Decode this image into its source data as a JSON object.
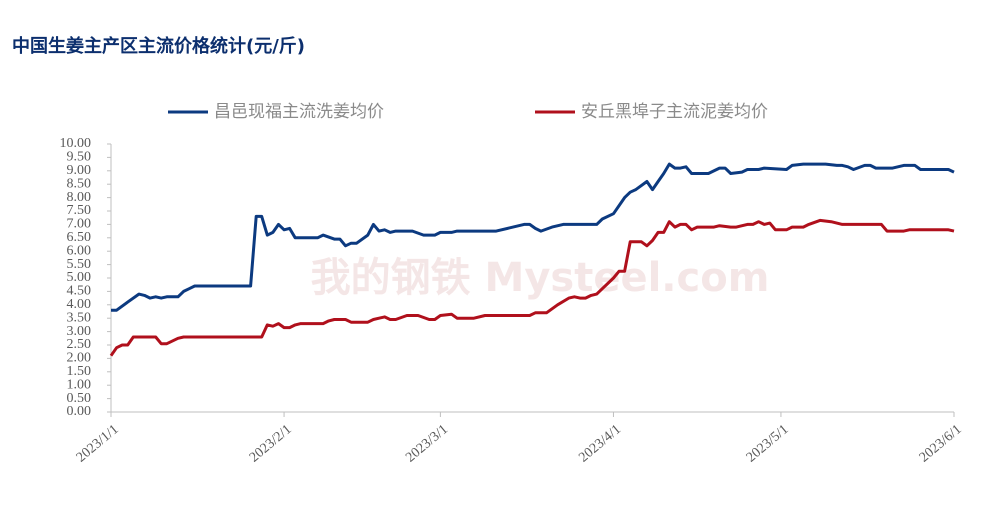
{
  "chart_data": {
    "type": "line",
    "title": "中国生姜主产区主流价格统计(元/斤)",
    "watermark": "我的钢铁 Mysteel.com",
    "ylim": [
      0,
      10
    ],
    "yticks": [
      {
        "value": 0,
        "label": "0.00"
      },
      {
        "value": 0.5,
        "label": "0.50"
      },
      {
        "value": 1,
        "label": "1.00"
      },
      {
        "value": 1.5,
        "label": "1.50"
      },
      {
        "value": 2,
        "label": "2.00"
      },
      {
        "value": 2.5,
        "label": "2.50"
      },
      {
        "value": 3,
        "label": "3.00"
      },
      {
        "value": 3.5,
        "label": "3.50"
      },
      {
        "value": 4,
        "label": "4.00"
      },
      {
        "value": 4.5,
        "label": "4.50"
      },
      {
        "value": 5,
        "label": "5.00"
      },
      {
        "value": 5.5,
        "label": "5.50"
      },
      {
        "value": 6,
        "label": "6.00"
      },
      {
        "value": 6.5,
        "label": "6.50"
      },
      {
        "value": 7,
        "label": "7.00"
      },
      {
        "value": 7.5,
        "label": "7.50"
      },
      {
        "value": 8,
        "label": "8.00"
      },
      {
        "value": 8.5,
        "label": "8.50"
      },
      {
        "value": 9,
        "label": "9.00"
      },
      {
        "value": 9.5,
        "label": "9.50"
      },
      {
        "value": 10,
        "label": "10.00"
      }
    ],
    "xlim": [
      "2023/1/1",
      "2023/6/1"
    ],
    "xticks": [
      "2023/1/1",
      "2023/2/1",
      "2023/3/1",
      "2023/4/1",
      "2023/5/1",
      "2023/6/1"
    ],
    "legend": "top",
    "series": [
      {
        "name": "昌邑现福主流洗姜均价",
        "color": "#0c3a80",
        "x": [
          "2023/1/1",
          "2023/1/2",
          "2023/1/4",
          "2023/1/6",
          "2023/1/7",
          "2023/1/8",
          "2023/1/9",
          "2023/1/10",
          "2023/1/11",
          "2023/1/13",
          "2023/1/14",
          "2023/1/15",
          "2023/1/16",
          "2023/1/26",
          "2023/1/27",
          "2023/1/28",
          "2023/1/29",
          "2023/1/30",
          "2023/1/31",
          "2023/2/1",
          "2023/2/2",
          "2023/2/3",
          "2023/2/7",
          "2023/2/8",
          "2023/2/10",
          "2023/2/11",
          "2023/2/12",
          "2023/2/13",
          "2023/2/14",
          "2023/2/16",
          "2023/2/17",
          "2023/2/18",
          "2023/2/19",
          "2023/2/20",
          "2023/2/21",
          "2023/2/24",
          "2023/2/26",
          "2023/2/28",
          "2023/3/1",
          "2023/3/3",
          "2023/3/4",
          "2023/3/11",
          "2023/3/16",
          "2023/3/17",
          "2023/3/18",
          "2023/3/19",
          "2023/3/21",
          "2023/3/23",
          "2023/3/29",
          "2023/3/30",
          "2023/4/1",
          "2023/4/3",
          "2023/4/4",
          "2023/4/5",
          "2023/4/7",
          "2023/4/8",
          "2023/4/9",
          "2023/4/10",
          "2023/4/11",
          "2023/4/12",
          "2023/4/13",
          "2023/4/14",
          "2023/4/15",
          "2023/4/18",
          "2023/4/20",
          "2023/4/21",
          "2023/4/22",
          "2023/4/24",
          "2023/4/25",
          "2023/4/27",
          "2023/4/28",
          "2023/5/2",
          "2023/5/3",
          "2023/5/5",
          "2023/5/9",
          "2023/5/11",
          "2023/5/12",
          "2023/5/13",
          "2023/5/14",
          "2023/5/16",
          "2023/5/17",
          "2023/5/18",
          "2023/5/21",
          "2023/5/23",
          "2023/5/25",
          "2023/5/26",
          "2023/5/31",
          "2023/6/1"
        ],
        "values": [
          3.8,
          3.8,
          4.1,
          4.4,
          4.35,
          4.25,
          4.3,
          4.25,
          4.3,
          4.3,
          4.5,
          4.6,
          4.7,
          4.7,
          7.3,
          7.3,
          6.6,
          6.7,
          7.0,
          6.8,
          6.85,
          6.5,
          6.5,
          6.6,
          6.45,
          6.45,
          6.2,
          6.3,
          6.3,
          6.6,
          7.0,
          6.75,
          6.8,
          6.7,
          6.75,
          6.75,
          6.6,
          6.6,
          6.7,
          6.7,
          6.75,
          6.75,
          7.0,
          7.0,
          6.85,
          6.75,
          6.9,
          7.0,
          7.0,
          7.2,
          7.4,
          8.0,
          8.2,
          8.3,
          8.6,
          8.3,
          8.6,
          8.9,
          9.25,
          9.1,
          9.1,
          9.15,
          8.9,
          8.9,
          9.1,
          9.1,
          8.9,
          8.95,
          9.05,
          9.05,
          9.1,
          9.05,
          9.2,
          9.25,
          9.25,
          9.2,
          9.2,
          9.15,
          9.05,
          9.2,
          9.2,
          9.1,
          9.1,
          9.2,
          9.2,
          9.05,
          9.05,
          8.95
        ]
      },
      {
        "name": "安丘黑埠子主流泥姜均价",
        "color": "#b0101c",
        "x": [
          "2023/1/1",
          "2023/1/2",
          "2023/1/3",
          "2023/1/4",
          "2023/1/5",
          "2023/1/9",
          "2023/1/10",
          "2023/1/11",
          "2023/1/13",
          "2023/1/14",
          "2023/1/28",
          "2023/1/29",
          "2023/1/30",
          "2023/1/31",
          "2023/2/1",
          "2023/2/2",
          "2023/2/3",
          "2023/2/4",
          "2023/2/8",
          "2023/2/9",
          "2023/2/10",
          "2023/2/12",
          "2023/2/13",
          "2023/2/16",
          "2023/2/17",
          "2023/2/19",
          "2023/2/20",
          "2023/2/21",
          "2023/2/23",
          "2023/2/25",
          "2023/2/27",
          "2023/2/28",
          "2023/3/1",
          "2023/3/3",
          "2023/3/4",
          "2023/3/7",
          "2023/3/9",
          "2023/3/17",
          "2023/3/18",
          "2023/3/20",
          "2023/3/22",
          "2023/3/24",
          "2023/3/25",
          "2023/3/26",
          "2023/3/27",
          "2023/3/28",
          "2023/3/29",
          "2023/3/30",
          "2023/4/1",
          "2023/4/2",
          "2023/4/3",
          "2023/4/4",
          "2023/4/6",
          "2023/4/7",
          "2023/4/8",
          "2023/4/9",
          "2023/4/10",
          "2023/4/11",
          "2023/4/12",
          "2023/4/13",
          "2023/4/14",
          "2023/4/15",
          "2023/4/16",
          "2023/4/19",
          "2023/4/20",
          "2023/4/22",
          "2023/4/23",
          "2023/4/25",
          "2023/4/26",
          "2023/4/27",
          "2023/4/28",
          "2023/4/29",
          "2023/4/30",
          "2023/5/2",
          "2023/5/3",
          "2023/5/5",
          "2023/5/6",
          "2023/5/8",
          "2023/5/10",
          "2023/5/12",
          "2023/5/19",
          "2023/5/20",
          "2023/5/23",
          "2023/5/24",
          "2023/5/31",
          "2023/6/1"
        ],
        "values": [
          2.1,
          2.4,
          2.5,
          2.5,
          2.8,
          2.8,
          2.55,
          2.55,
          2.75,
          2.8,
          2.8,
          3.25,
          3.2,
          3.3,
          3.15,
          3.15,
          3.25,
          3.3,
          3.3,
          3.4,
          3.45,
          3.45,
          3.35,
          3.35,
          3.45,
          3.55,
          3.45,
          3.45,
          3.6,
          3.6,
          3.45,
          3.45,
          3.6,
          3.65,
          3.5,
          3.5,
          3.6,
          3.6,
          3.7,
          3.7,
          4.0,
          4.25,
          4.3,
          4.25,
          4.25,
          4.35,
          4.4,
          4.6,
          5.0,
          5.25,
          5.25,
          6.35,
          6.35,
          6.2,
          6.4,
          6.7,
          6.7,
          7.1,
          6.9,
          7.0,
          7.0,
          6.8,
          6.9,
          6.9,
          6.95,
          6.9,
          6.9,
          7.0,
          7.0,
          7.1,
          7.0,
          7.05,
          6.8,
          6.8,
          6.9,
          6.9,
          7.0,
          7.15,
          7.1,
          7.0,
          7.0,
          6.75,
          6.75,
          6.8,
          6.8,
          6.75
        ]
      }
    ]
  }
}
